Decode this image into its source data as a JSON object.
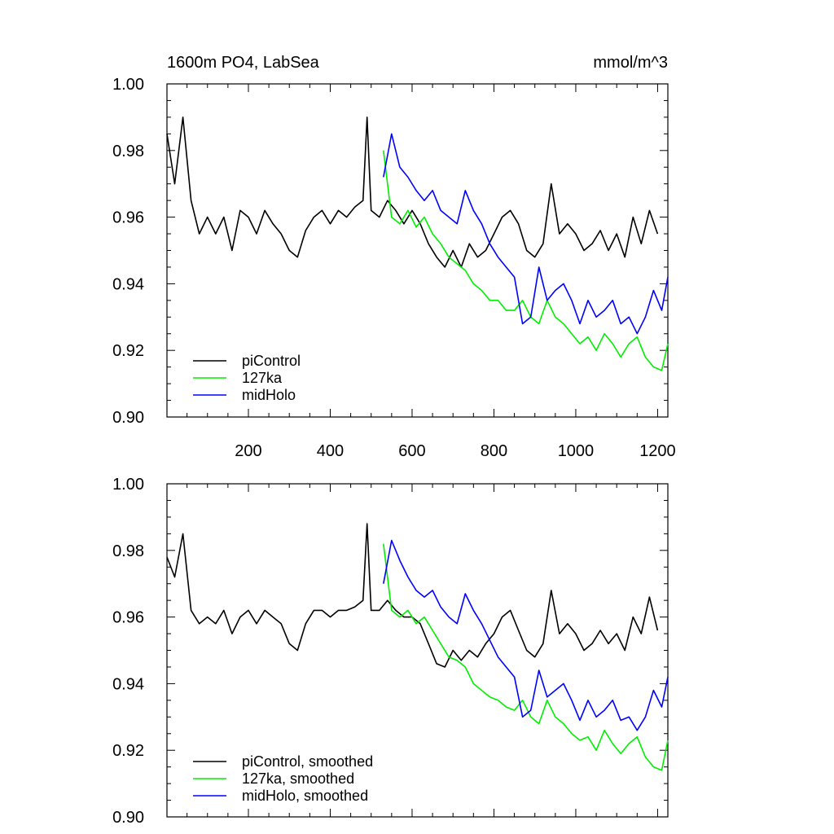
{
  "chart_data": [
    {
      "type": "line",
      "title": "1600m PO4, LabSea",
      "units": "mmol/m^3",
      "xlabel": "",
      "ylabel": "",
      "xlim": [
        1,
        1225
      ],
      "ylim": [
        0.9,
        1.0
      ],
      "xticks": [
        200,
        400,
        600,
        800,
        1000,
        1200
      ],
      "xtick_labels": [
        "200",
        "400",
        "600",
        "800",
        "1000",
        "1200"
      ],
      "yticks": [
        0.9,
        0.92,
        0.94,
        0.96,
        0.98,
        1.0
      ],
      "ytick_labels": [
        "0.90",
        "0.92",
        "0.94",
        "0.96",
        "0.98",
        "1.00"
      ],
      "legend_position": "bottom-left",
      "series": [
        {
          "name": "piControl",
          "color": "#000000",
          "x": [
            1,
            20,
            40,
            60,
            80,
            100,
            120,
            140,
            160,
            180,
            200,
            220,
            240,
            260,
            280,
            300,
            320,
            340,
            360,
            380,
            400,
            420,
            440,
            460,
            480,
            490,
            500,
            520,
            540,
            560,
            580,
            600,
            620,
            640,
            660,
            680,
            700,
            720,
            740,
            760,
            780,
            800,
            820,
            840,
            860,
            880,
            900,
            920,
            940,
            960,
            980,
            1000,
            1020,
            1040,
            1060,
            1080,
            1100,
            1120,
            1140,
            1160,
            1180,
            1200
          ],
          "values": [
            0.985,
            0.97,
            0.99,
            0.965,
            0.955,
            0.96,
            0.955,
            0.96,
            0.95,
            0.962,
            0.96,
            0.955,
            0.962,
            0.958,
            0.955,
            0.95,
            0.948,
            0.956,
            0.96,
            0.962,
            0.958,
            0.962,
            0.96,
            0.963,
            0.965,
            0.99,
            0.962,
            0.96,
            0.965,
            0.962,
            0.958,
            0.962,
            0.958,
            0.952,
            0.948,
            0.945,
            0.95,
            0.945,
            0.952,
            0.948,
            0.95,
            0.955,
            0.96,
            0.962,
            0.958,
            0.95,
            0.948,
            0.952,
            0.97,
            0.955,
            0.958,
            0.955,
            0.95,
            0.952,
            0.956,
            0.95,
            0.955,
            0.948,
            0.96,
            0.952,
            0.962,
            0.955
          ]
        },
        {
          "name": "127ka",
          "color": "#00ee00",
          "x": [
            530,
            550,
            570,
            590,
            610,
            630,
            650,
            670,
            690,
            710,
            730,
            750,
            770,
            790,
            810,
            830,
            850,
            870,
            890,
            910,
            930,
            950,
            970,
            990,
            1010,
            1030,
            1050,
            1070,
            1090,
            1110,
            1130,
            1150,
            1170,
            1190,
            1210,
            1225
          ],
          "values": [
            0.98,
            0.96,
            0.958,
            0.962,
            0.957,
            0.96,
            0.955,
            0.952,
            0.948,
            0.946,
            0.944,
            0.94,
            0.938,
            0.935,
            0.935,
            0.932,
            0.932,
            0.935,
            0.93,
            0.928,
            0.935,
            0.93,
            0.928,
            0.925,
            0.922,
            0.924,
            0.92,
            0.925,
            0.922,
            0.918,
            0.922,
            0.924,
            0.918,
            0.915,
            0.914,
            0.922
          ]
        },
        {
          "name": "midHolo",
          "color": "#0000ff",
          "x": [
            530,
            550,
            570,
            590,
            610,
            630,
            650,
            670,
            690,
            710,
            730,
            750,
            770,
            790,
            810,
            830,
            850,
            870,
            890,
            910,
            930,
            950,
            970,
            990,
            1010,
            1030,
            1050,
            1070,
            1090,
            1110,
            1130,
            1150,
            1170,
            1190,
            1210,
            1225
          ],
          "values": [
            0.972,
            0.985,
            0.975,
            0.972,
            0.968,
            0.965,
            0.968,
            0.962,
            0.96,
            0.958,
            0.968,
            0.962,
            0.958,
            0.952,
            0.948,
            0.945,
            0.942,
            0.928,
            0.93,
            0.945,
            0.935,
            0.938,
            0.94,
            0.935,
            0.928,
            0.935,
            0.93,
            0.932,
            0.935,
            0.928,
            0.93,
            0.925,
            0.93,
            0.938,
            0.932,
            0.942
          ]
        }
      ]
    },
    {
      "type": "line",
      "title": "",
      "xlabel": "",
      "ylabel": "",
      "xlim": [
        1,
        1225
      ],
      "ylim": [
        0.9,
        1.0
      ],
      "xticks": [
        200,
        400,
        600,
        800,
        1000,
        1200
      ],
      "yticks": [
        0.9,
        0.92,
        0.94,
        0.96,
        0.98,
        1.0
      ],
      "ytick_labels": [
        "0.90",
        "0.92",
        "0.94",
        "0.96",
        "0.98",
        "1.00"
      ],
      "legend_position": "bottom-left",
      "series": [
        {
          "name": "piControl, smoothed",
          "color": "#000000",
          "x": [
            1,
            20,
            40,
            60,
            80,
            100,
            120,
            140,
            160,
            180,
            200,
            220,
            240,
            260,
            280,
            300,
            320,
            340,
            360,
            380,
            400,
            420,
            440,
            460,
            480,
            490,
            500,
            520,
            540,
            560,
            580,
            600,
            620,
            640,
            660,
            680,
            700,
            720,
            740,
            760,
            780,
            800,
            820,
            840,
            860,
            880,
            900,
            920,
            940,
            960,
            980,
            1000,
            1020,
            1040,
            1060,
            1080,
            1100,
            1120,
            1140,
            1160,
            1180,
            1200
          ],
          "values": [
            0.978,
            0.972,
            0.985,
            0.962,
            0.958,
            0.96,
            0.958,
            0.962,
            0.955,
            0.96,
            0.962,
            0.958,
            0.962,
            0.96,
            0.958,
            0.952,
            0.95,
            0.958,
            0.962,
            0.962,
            0.96,
            0.962,
            0.962,
            0.963,
            0.965,
            0.988,
            0.962,
            0.962,
            0.965,
            0.962,
            0.96,
            0.96,
            0.958,
            0.952,
            0.946,
            0.945,
            0.95,
            0.947,
            0.95,
            0.948,
            0.952,
            0.955,
            0.96,
            0.962,
            0.956,
            0.95,
            0.948,
            0.952,
            0.968,
            0.955,
            0.958,
            0.955,
            0.95,
            0.952,
            0.956,
            0.952,
            0.955,
            0.95,
            0.96,
            0.955,
            0.966,
            0.956
          ]
        },
        {
          "name": "127ka, smoothed",
          "color": "#00ee00",
          "x": [
            530,
            550,
            570,
            590,
            610,
            630,
            650,
            670,
            690,
            710,
            730,
            750,
            770,
            790,
            810,
            830,
            850,
            870,
            890,
            910,
            930,
            950,
            970,
            990,
            1010,
            1030,
            1050,
            1070,
            1090,
            1110,
            1130,
            1150,
            1170,
            1190,
            1210,
            1225
          ],
          "values": [
            0.982,
            0.962,
            0.96,
            0.962,
            0.958,
            0.96,
            0.956,
            0.952,
            0.948,
            0.947,
            0.945,
            0.94,
            0.938,
            0.936,
            0.935,
            0.933,
            0.932,
            0.935,
            0.93,
            0.928,
            0.935,
            0.93,
            0.928,
            0.925,
            0.923,
            0.924,
            0.92,
            0.926,
            0.922,
            0.919,
            0.922,
            0.924,
            0.918,
            0.915,
            0.914,
            0.923
          ]
        },
        {
          "name": "midHolo, smoothed",
          "color": "#0000ff",
          "x": [
            530,
            550,
            570,
            590,
            610,
            630,
            650,
            670,
            690,
            710,
            730,
            750,
            770,
            790,
            810,
            830,
            850,
            870,
            890,
            910,
            930,
            950,
            970,
            990,
            1010,
            1030,
            1050,
            1070,
            1090,
            1110,
            1130,
            1150,
            1170,
            1190,
            1210,
            1225
          ],
          "values": [
            0.97,
            0.983,
            0.977,
            0.972,
            0.968,
            0.966,
            0.968,
            0.963,
            0.96,
            0.958,
            0.967,
            0.962,
            0.958,
            0.953,
            0.948,
            0.945,
            0.942,
            0.93,
            0.932,
            0.944,
            0.936,
            0.938,
            0.94,
            0.935,
            0.929,
            0.935,
            0.93,
            0.932,
            0.935,
            0.929,
            0.93,
            0.926,
            0.93,
            0.938,
            0.933,
            0.942
          ]
        }
      ]
    }
  ]
}
